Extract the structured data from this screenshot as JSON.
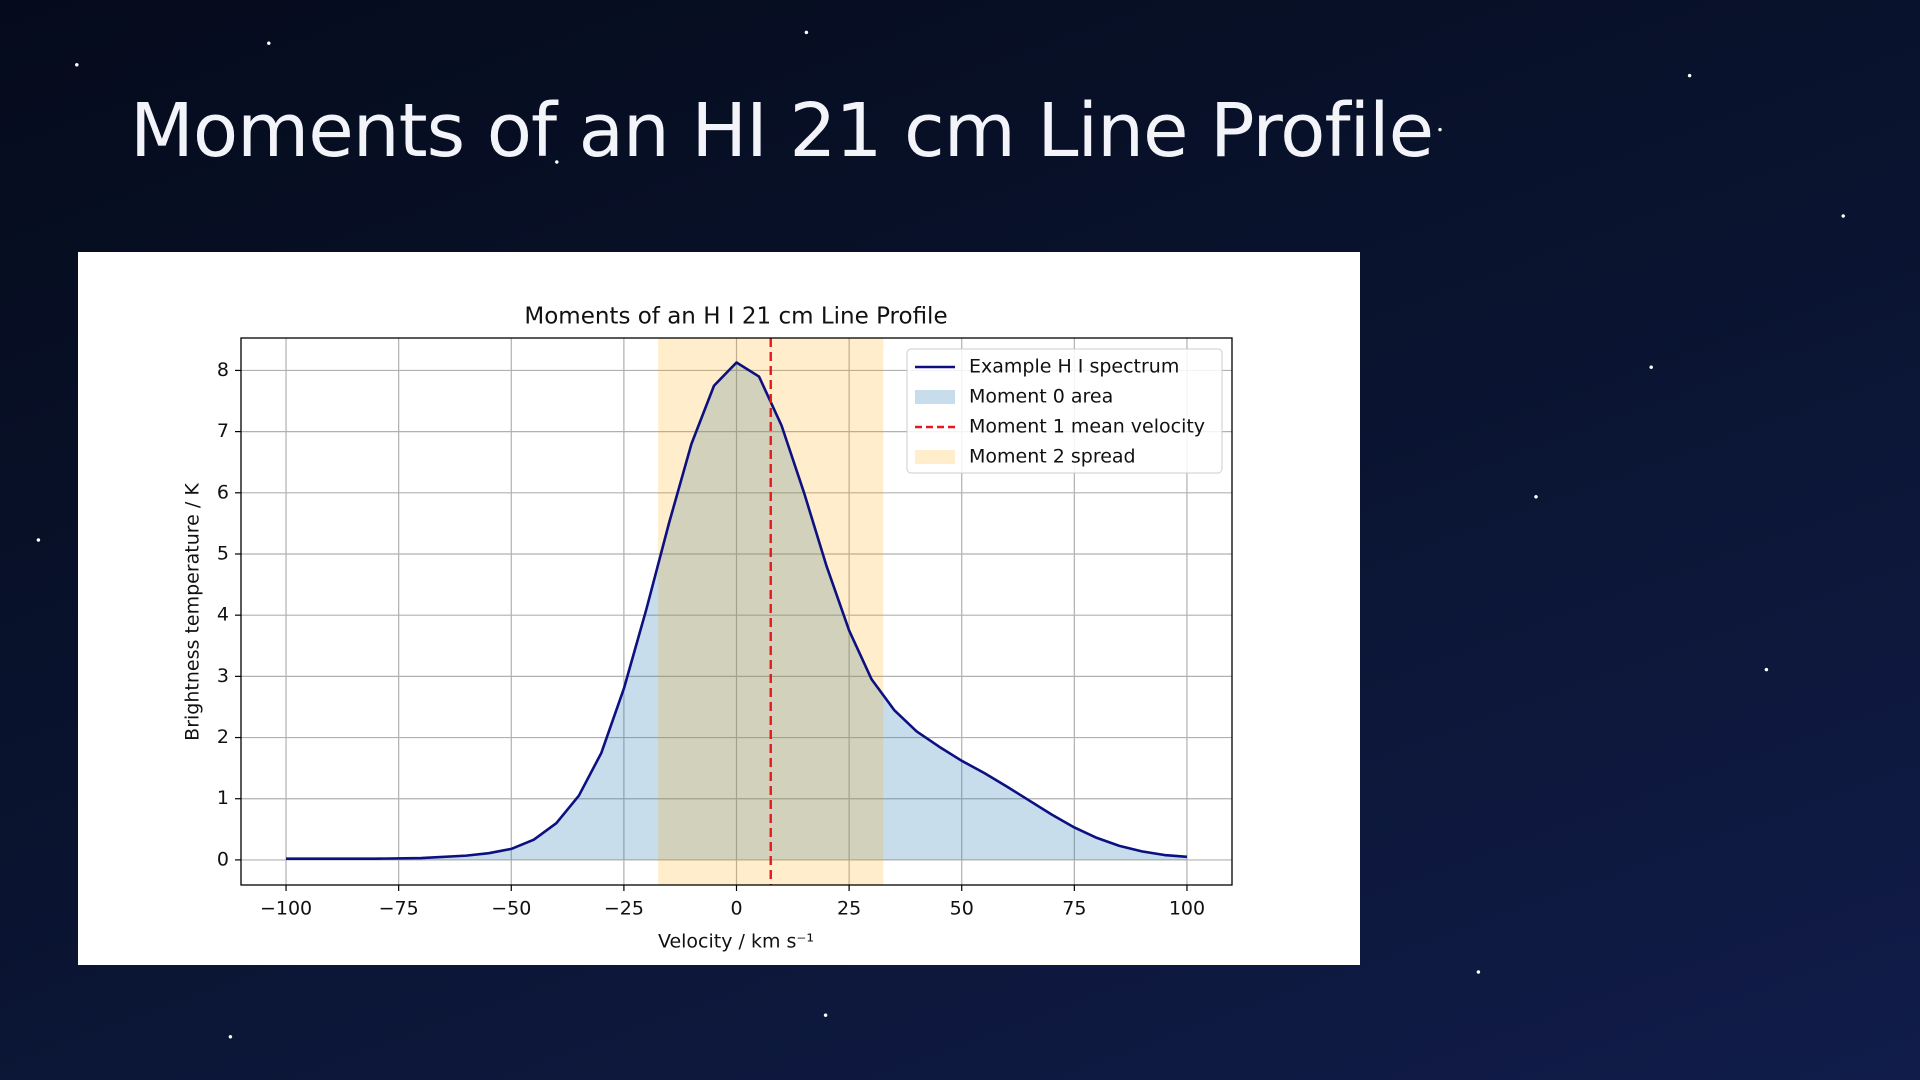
{
  "slide_title": "Moments of an HI 21 cm Line Profile",
  "chart_data": {
    "type": "line",
    "title": "Moments of an H I 21 cm Line Profile",
    "xlabel": "Velocity / km s⁻¹",
    "ylabel": "Brightness temperature / K",
    "x": [
      -100,
      -90,
      -80,
      -70,
      -60,
      -55,
      -50,
      -45,
      -40,
      -35,
      -30,
      -25,
      -20,
      -15,
      -10,
      -5,
      0,
      5,
      10,
      15,
      20,
      25,
      30,
      35,
      40,
      45,
      50,
      55,
      60,
      65,
      70,
      75,
      80,
      85,
      90,
      95,
      100
    ],
    "series": [
      {
        "name": "Example H I spectrum",
        "color": "#0d1080",
        "values": [
          0.02,
          0.02,
          0.02,
          0.03,
          0.07,
          0.11,
          0.18,
          0.33,
          0.6,
          1.05,
          1.75,
          2.8,
          4.1,
          5.5,
          6.8,
          7.75,
          8.13,
          7.9,
          7.1,
          6.0,
          4.8,
          3.75,
          2.95,
          2.45,
          2.1,
          1.85,
          1.62,
          1.42,
          1.2,
          0.97,
          0.74,
          0.53,
          0.36,
          0.23,
          0.14,
          0.08,
          0.05
        ]
      }
    ],
    "fill": {
      "name": "Moment 0 area",
      "color": "#1f77b4",
      "opacity": 0.25
    },
    "mean_velocity": {
      "name": "Moment 1 mean velocity",
      "color": "#e41a1c",
      "value": 7.6
    },
    "spread": {
      "name": "Moment 2 spread",
      "color": "#ffa500",
      "opacity": 0.2,
      "range": [
        -17.4,
        32.6
      ]
    },
    "xlim": [
      -110,
      110
    ],
    "ylim": [
      -0.41,
      8.53
    ],
    "xticks": [
      {
        "value": -100,
        "label": "−100"
      },
      {
        "value": -75,
        "label": "−75"
      },
      {
        "value": -50,
        "label": "−50"
      },
      {
        "value": -25,
        "label": "−25"
      },
      0,
      25,
      50,
      75,
      100
    ],
    "yticks": [
      0,
      1,
      2,
      3,
      4,
      5,
      6,
      7,
      8
    ],
    "grid": true,
    "legend": "upper right"
  }
}
